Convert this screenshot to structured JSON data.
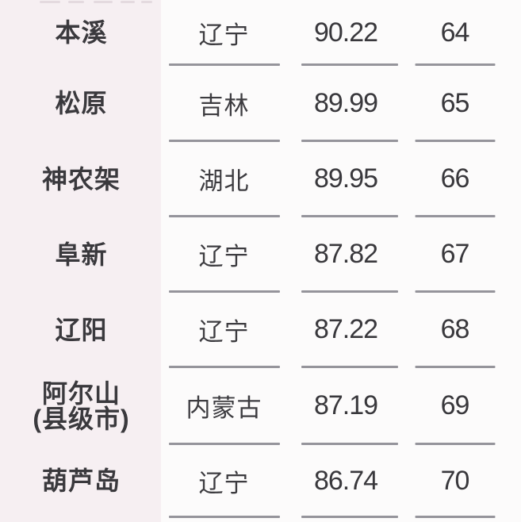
{
  "colors": {
    "city_column_bg": "#f6eff2",
    "table_bg": "#fcfbfb",
    "text": "#3a393d",
    "divider": "#95949b"
  },
  "table": {
    "rows": [
      {
        "city": "本溪",
        "province": "辽宁",
        "score": "90.22",
        "rank": "64"
      },
      {
        "city": "松原",
        "province": "吉林",
        "score": "89.99",
        "rank": "65"
      },
      {
        "city": "神农架",
        "province": "湖北",
        "score": "89.95",
        "rank": "66"
      },
      {
        "city": "阜新",
        "province": "辽宁",
        "score": "87.82",
        "rank": "67"
      },
      {
        "city": "辽阳",
        "province": "辽宁",
        "score": "87.22",
        "rank": "68"
      },
      {
        "city": "阿尔山\n(县级市)",
        "province": "内蒙古",
        "score": "87.19",
        "rank": "69"
      },
      {
        "city": "葫芦岛",
        "province": "辽宁",
        "score": "86.74",
        "rank": "70"
      }
    ]
  },
  "chart_data": {
    "type": "table",
    "columns": [
      "city",
      "province",
      "score",
      "rank"
    ],
    "rows": [
      [
        "本溪",
        "辽宁",
        90.22,
        64
      ],
      [
        "松原",
        "吉林",
        89.99,
        65
      ],
      [
        "神农架",
        "湖北",
        89.95,
        66
      ],
      [
        "阜新",
        "辽宁",
        87.82,
        67
      ],
      [
        "辽阳",
        "辽宁",
        87.22,
        68
      ],
      [
        "阿尔山(县级市)",
        "内蒙古",
        87.19,
        69
      ],
      [
        "葫芦岛",
        "辽宁",
        86.74,
        70
      ]
    ]
  }
}
